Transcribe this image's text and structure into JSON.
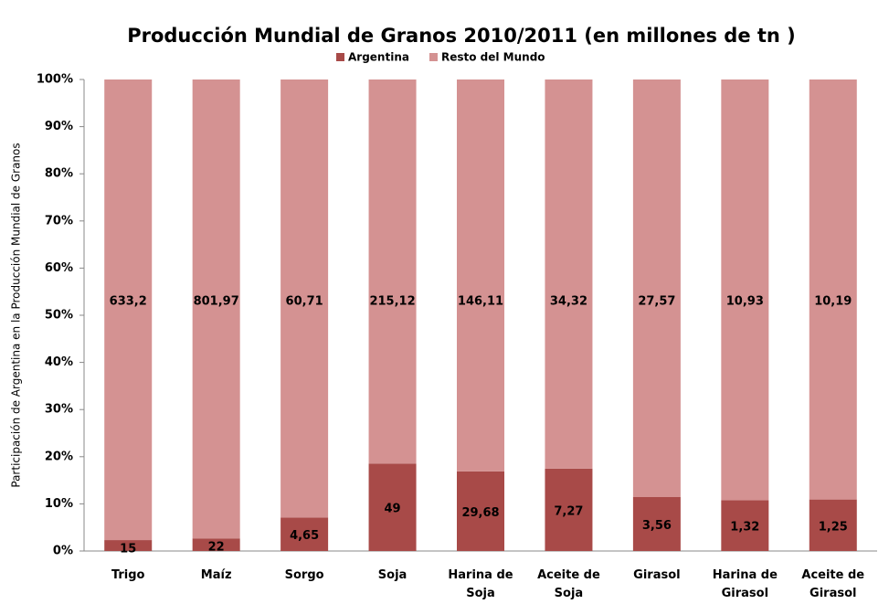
{
  "chart_data": {
    "type": "bar",
    "stacking": "percent",
    "title": "Producción Mundial de Granos 2010/2011   (en millones de tn )",
    "y_label": "Participación de Argentina en la Producción Mundial de Granos",
    "categories": [
      "Trigo",
      "Maíz",
      "Sorgo",
      "Soja",
      "Harina de Soja",
      "Aceite de Soja",
      "Girasol",
      "Harina de Girasol",
      "Aceite de Girasol"
    ],
    "series": [
      {
        "name": "Argentina",
        "color": "#a84a48",
        "values": [
          15,
          22,
          4.65,
          49,
          29.68,
          7.27,
          3.56,
          1.32,
          1.25
        ],
        "value_labels": [
          "15",
          "22",
          "4,65",
          "49",
          "29,68",
          "7,27",
          "3,56",
          "1,32",
          "1,25"
        ]
      },
      {
        "name": "Resto del Mundo",
        "color": "#d49292",
        "values": [
          633.2,
          801.97,
          60.71,
          215.12,
          146.11,
          34.32,
          27.57,
          10.93,
          10.19
        ],
        "value_labels": [
          "633,2",
          "801,97",
          "60,71",
          "215,12",
          "146,11",
          "34,32",
          "27,57",
          "10,93",
          "10,19"
        ]
      }
    ],
    "ylim": [
      0,
      100
    ],
    "yticks": [
      {
        "value": 0,
        "label": "0%"
      },
      {
        "value": 10,
        "label": "10%"
      },
      {
        "value": 20,
        "label": "20%"
      },
      {
        "value": 30,
        "label": "30%"
      },
      {
        "value": 40,
        "label": "40%"
      },
      {
        "value": 50,
        "label": "50%"
      },
      {
        "value": 60,
        "label": "60%"
      },
      {
        "value": 70,
        "label": "70%"
      },
      {
        "value": 80,
        "label": "80%"
      },
      {
        "value": 90,
        "label": "90%"
      },
      {
        "value": 100,
        "label": "100%"
      }
    ],
    "legend": "top",
    "grid": false
  }
}
